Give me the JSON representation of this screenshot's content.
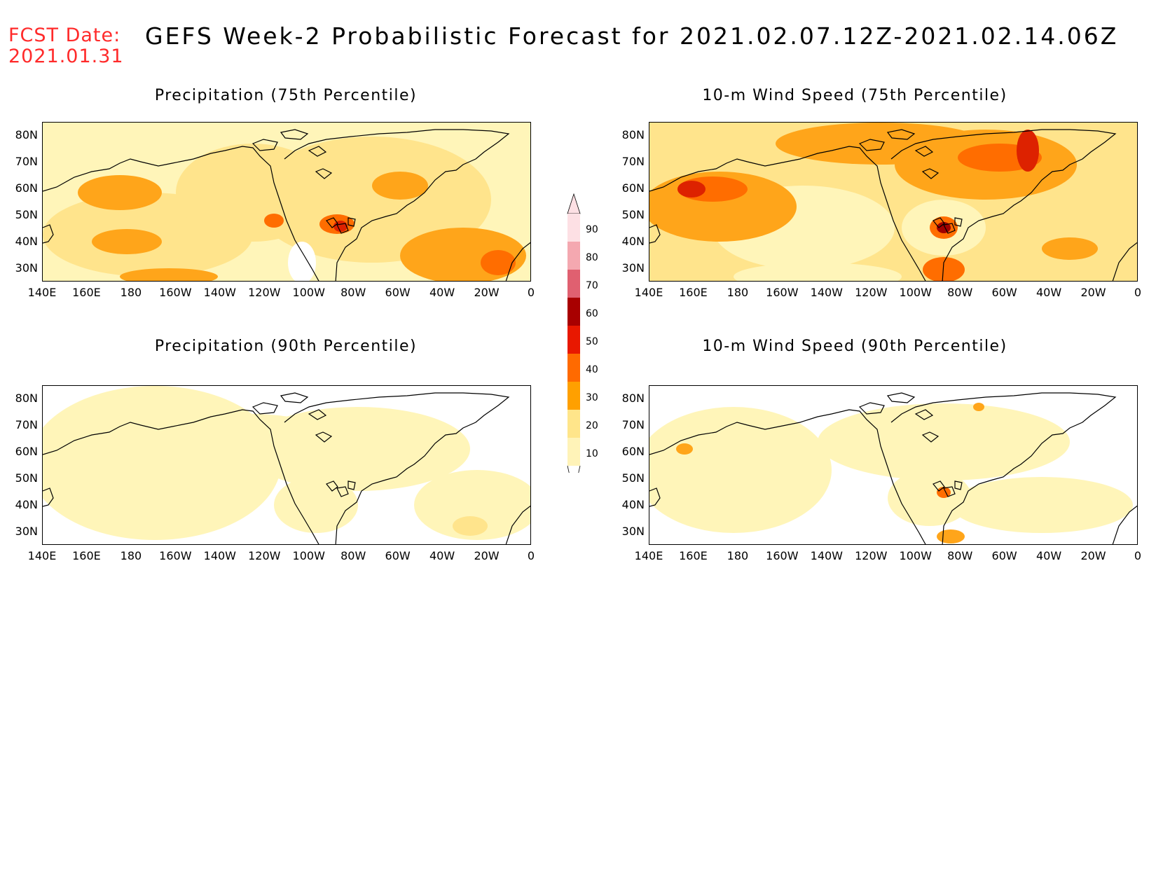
{
  "header": {
    "fcst_label": "FCST Date:",
    "fcst_date": "2021.01.31",
    "title": "GEFS Week-2 Probabilistic Forecast for 2021.02.07.12Z-2021.02.14.06Z"
  },
  "axes": {
    "lat_labels": [
      "80N",
      "70N",
      "60N",
      "50N",
      "40N",
      "30N"
    ],
    "lon_labels": [
      "140E",
      "160E",
      "180",
      "160W",
      "140W",
      "120W",
      "100W",
      "80W",
      "60W",
      "40W",
      "20W",
      "0"
    ]
  },
  "panels": [
    {
      "id": "precip75",
      "title": "Precipitation (75th Percentile)"
    },
    {
      "id": "wind75",
      "title": "10-m Wind Speed (75th Percentile)"
    },
    {
      "id": "precip90",
      "title": "Precipitation (90th Percentile)"
    },
    {
      "id": "wind90",
      "title": "10-m Wind Speed (90th Percentile)"
    }
  ],
  "legend": {
    "levels": [
      "10",
      "20",
      "30",
      "40",
      "50",
      "60",
      "70",
      "80",
      "90"
    ],
    "colors": [
      "#fff3b8",
      "#ffe58a",
      "#ffa000",
      "#ff6a00",
      "#e81800",
      "#a80000",
      "#e06070",
      "#f4a8b0",
      "#fde0e4"
    ]
  },
  "fill_colors": {
    "light": "#fff5b9",
    "medium": "#ffe48c",
    "orange": "#ffa51a",
    "dark_orange": "#ff6d00",
    "red": "#dd2200",
    "dark_red": "#a00000"
  }
}
